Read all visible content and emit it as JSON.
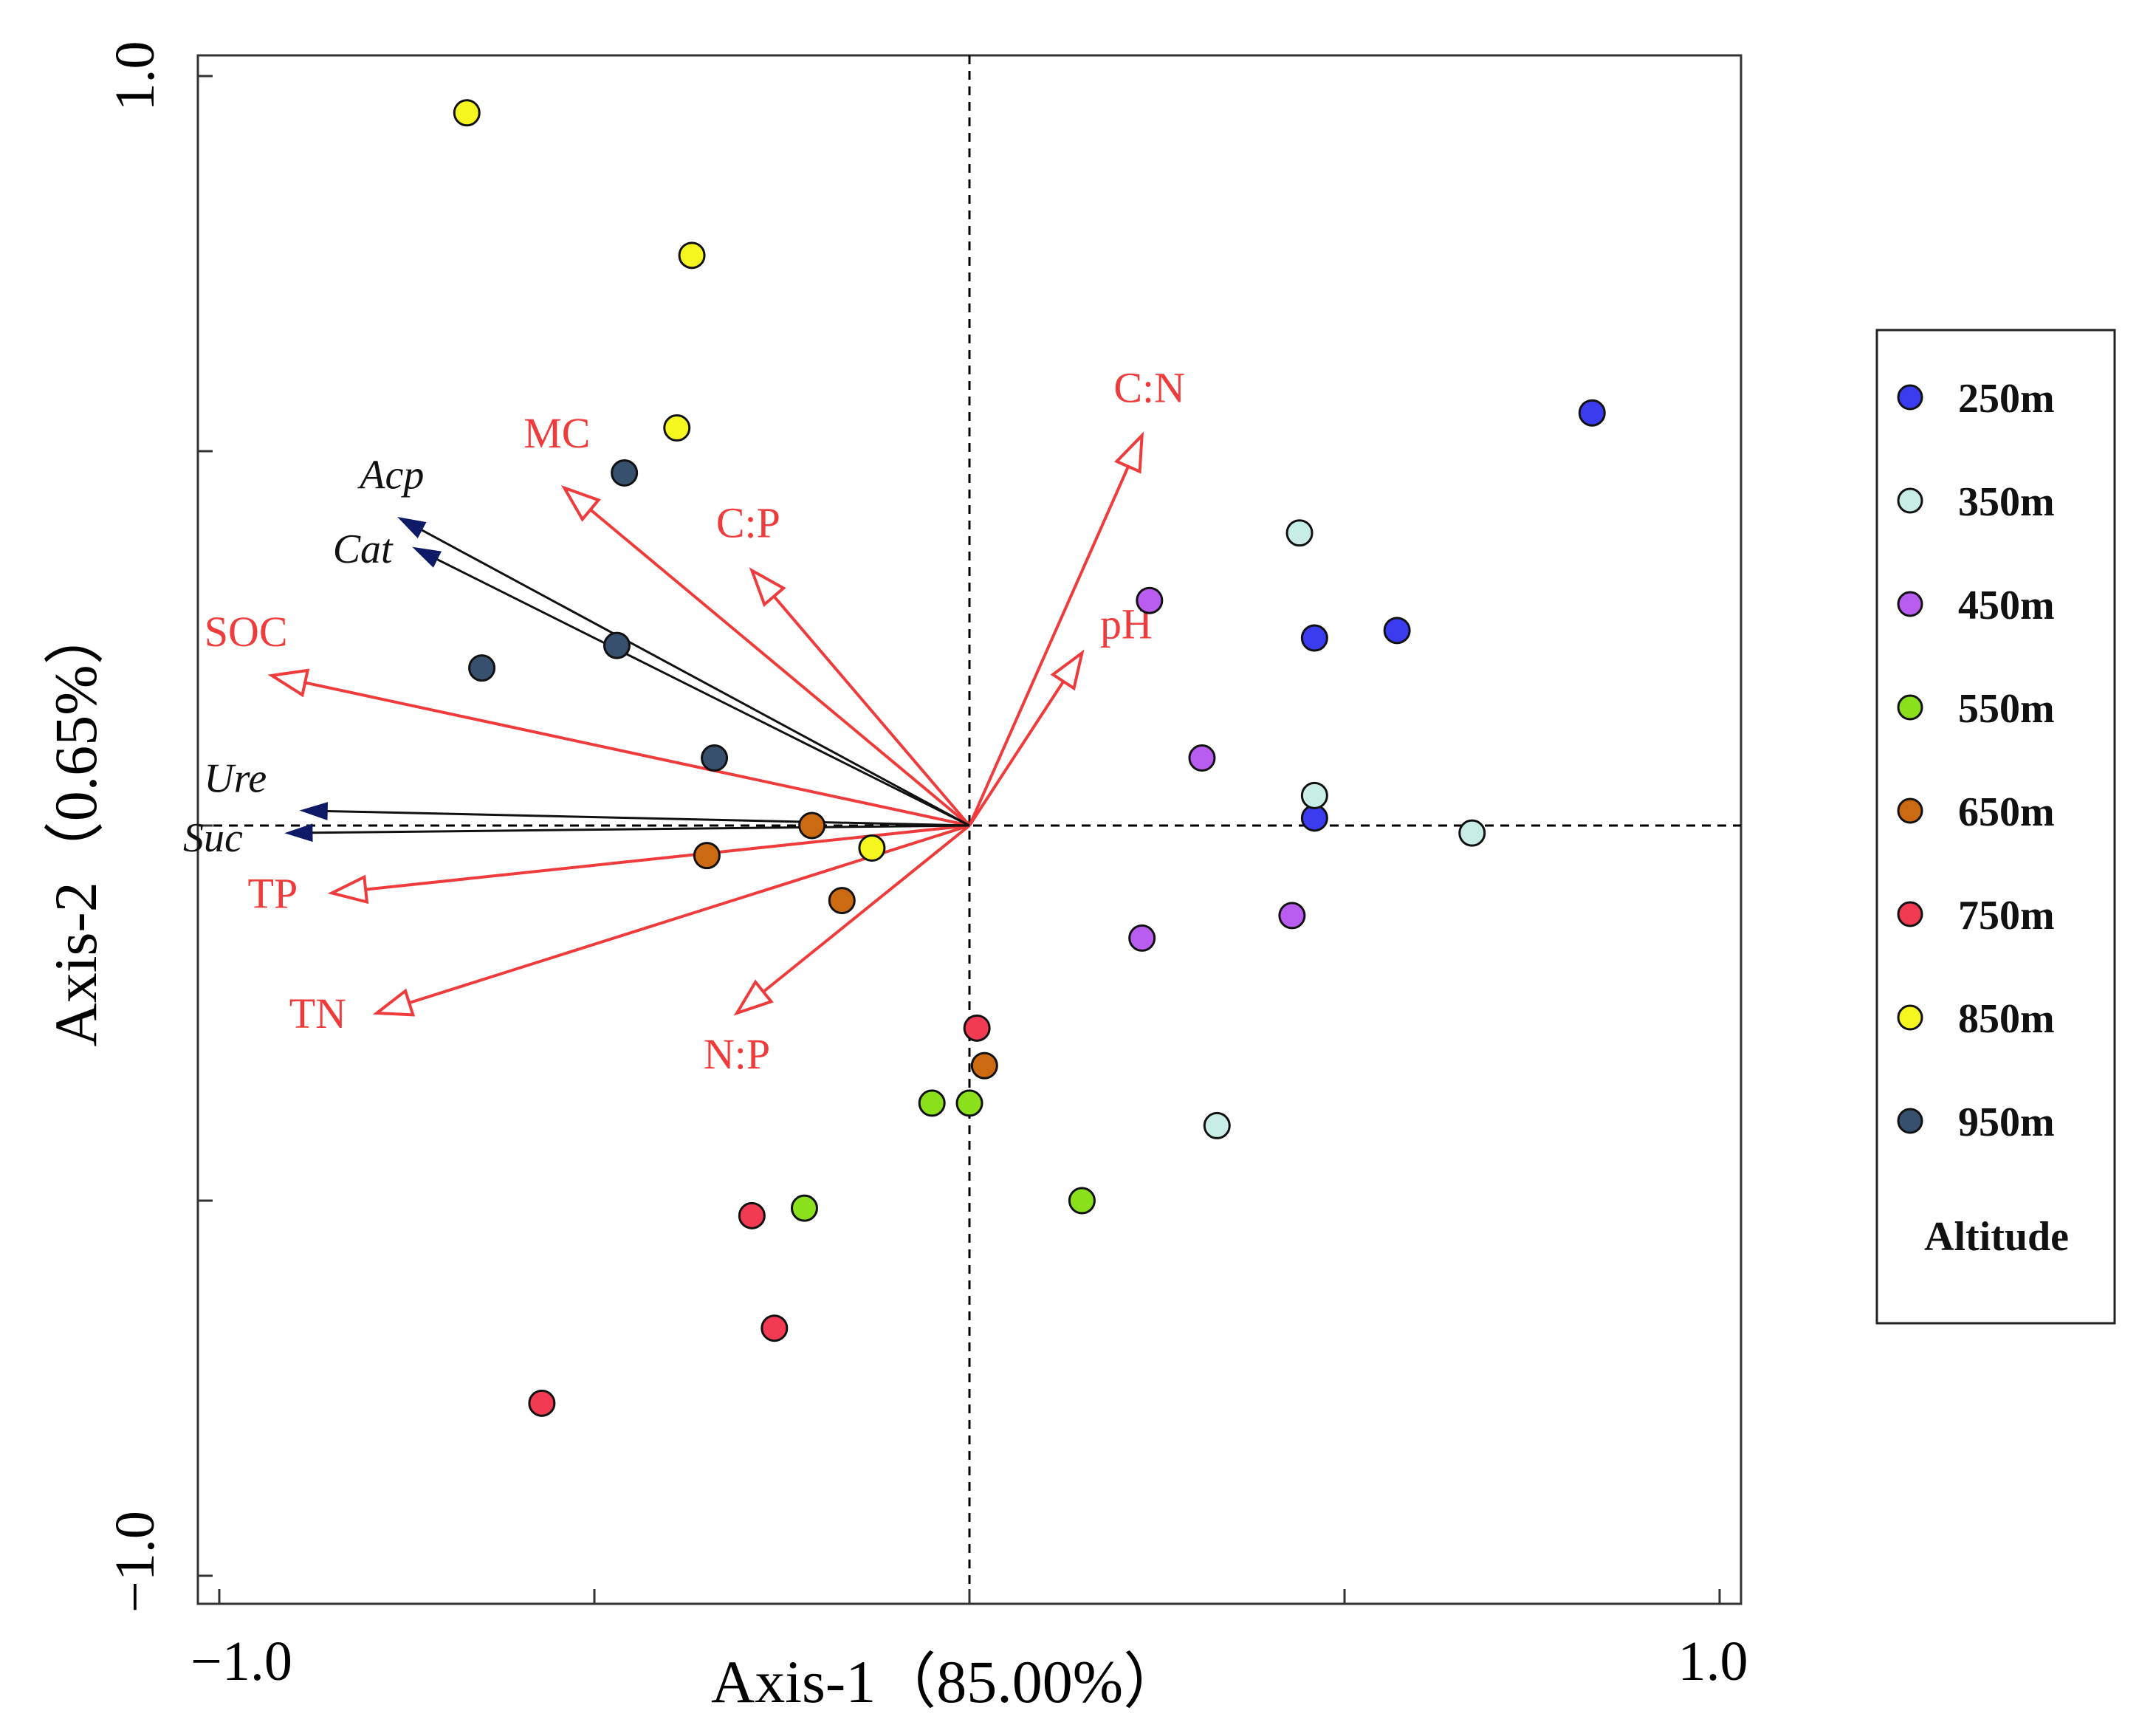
{
  "chart_data": {
    "type": "scatter",
    "subtype": "ordination-biplot",
    "xlabel": "Axis-1（85.00%）",
    "ylabel": "Axis-2（0.65%）",
    "xlim": [
      -1.0,
      1.0
    ],
    "ylim": [
      -1.0,
      1.0
    ],
    "x_tick_labels": [
      "−1.0",
      "1.0"
    ],
    "y_tick_labels": [
      "1.0",
      "−1.0"
    ],
    "legend": {
      "title": "Altitude",
      "position": "right",
      "entries": [
        {
          "label": "250m",
          "color": "#3b3bf0"
        },
        {
          "label": "350m",
          "color": "#c8ece6"
        },
        {
          "label": "450m",
          "color": "#b95cf0"
        },
        {
          "label": "550m",
          "color": "#8be01c"
        },
        {
          "label": "650m",
          "color": "#cc6a12"
        },
        {
          "label": "750m",
          "color": "#f23a52"
        },
        {
          "label": "850m",
          "color": "#f5f51f"
        },
        {
          "label": "950m",
          "color": "#36506e"
        }
      ]
    },
    "series": [
      {
        "name": "250m",
        "color": "#3b3bf0",
        "points": [
          [
            0.83,
            0.55
          ],
          [
            0.46,
            0.25
          ],
          [
            0.57,
            0.26
          ],
          [
            0.46,
            0.01
          ]
        ]
      },
      {
        "name": "350m",
        "color": "#c8ece6",
        "points": [
          [
            0.44,
            0.39
          ],
          [
            0.46,
            0.04
          ],
          [
            0.67,
            -0.01
          ],
          [
            0.33,
            -0.4
          ]
        ]
      },
      {
        "name": "450m",
        "color": "#b95cf0",
        "points": [
          [
            0.24,
            0.3
          ],
          [
            0.31,
            0.09
          ],
          [
            0.43,
            -0.12
          ],
          [
            0.23,
            -0.15
          ]
        ]
      },
      {
        "name": "550m",
        "color": "#8be01c",
        "points": [
          [
            -0.05,
            -0.37
          ],
          [
            0.0,
            -0.37
          ],
          [
            -0.22,
            -0.51
          ],
          [
            0.15,
            -0.5
          ]
        ]
      },
      {
        "name": "650m",
        "color": "#cc6a12",
        "points": [
          [
            -0.21,
            0.0
          ],
          [
            -0.35,
            -0.04
          ],
          [
            -0.17,
            -0.1
          ],
          [
            0.02,
            -0.32
          ]
        ]
      },
      {
        "name": "750m",
        "color": "#f23a52",
        "points": [
          [
            0.01,
            -0.27
          ],
          [
            -0.29,
            -0.52
          ],
          [
            -0.26,
            -0.67
          ],
          [
            -0.57,
            -0.77
          ]
        ]
      },
      {
        "name": "850m",
        "color": "#f5f51f",
        "points": [
          [
            -0.67,
            0.95
          ],
          [
            -0.37,
            0.76
          ],
          [
            -0.39,
            0.53
          ],
          [
            -0.13,
            -0.03
          ]
        ]
      },
      {
        "name": "950m",
        "color": "#36506e",
        "points": [
          [
            -0.46,
            0.47
          ],
          [
            -0.47,
            0.24
          ],
          [
            -0.65,
            0.21
          ],
          [
            -0.34,
            0.09
          ]
        ]
      }
    ],
    "vectors": [
      {
        "label": "C:N",
        "color": "#ef3b3b",
        "group": "environmental",
        "x": 0.23,
        "y": 0.52
      },
      {
        "label": "pH",
        "color": "#ef3b3b",
        "group": "environmental",
        "x": 0.15,
        "y": 0.23
      },
      {
        "label": "MC",
        "color": "#ef3b3b",
        "group": "environmental",
        "x": -0.54,
        "y": 0.45
      },
      {
        "label": "C:P",
        "color": "#ef3b3b",
        "group": "environmental",
        "x": -0.29,
        "y": 0.34
      },
      {
        "label": "SOC",
        "color": "#ef3b3b",
        "group": "environmental",
        "x": -0.93,
        "y": 0.2
      },
      {
        "label": "TP",
        "color": "#ef3b3b",
        "group": "environmental",
        "x": -0.85,
        "y": -0.09
      },
      {
        "label": "TN",
        "color": "#ef3b3b",
        "group": "environmental",
        "x": -0.79,
        "y": -0.25
      },
      {
        "label": "N:P",
        "color": "#ef3b3b",
        "group": "environmental",
        "x": -0.31,
        "y": -0.25
      },
      {
        "label": "Acp",
        "color": "#111111",
        "group": "enzyme",
        "x": -0.76,
        "y": 0.41
      },
      {
        "label": "Cat",
        "color": "#111111",
        "group": "enzyme",
        "x": -0.74,
        "y": 0.37
      },
      {
        "label": "Ure",
        "color": "#111111",
        "group": "enzyme",
        "x": -0.89,
        "y": 0.02
      },
      {
        "label": "Suc",
        "color": "#111111",
        "group": "enzyme",
        "x": -0.91,
        "y": -0.01
      }
    ]
  }
}
